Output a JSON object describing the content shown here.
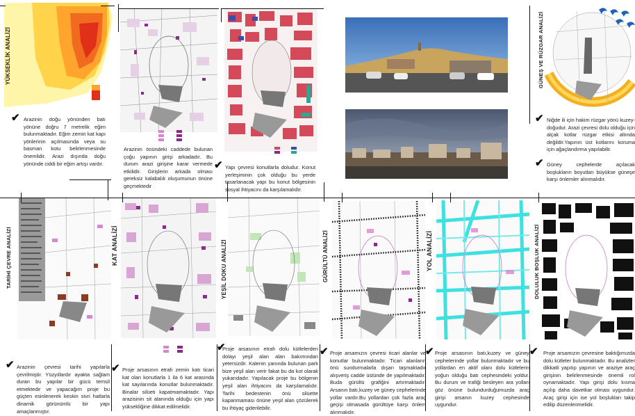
{
  "sections": {
    "yukseklik": {
      "title": "YÜKSEKLİK ANALİZİ",
      "text": "Arazinin doğu yönünden batı yönüne doğru 7 metrelik eğim bulunmaktadır. Eğim zemin kat kapı yönlerinin açılmasında veya su basman kotu belirlenmesinde önemlidir. Arazi dışında doğu yönünde ciddi bir eğim artışı vardır."
    },
    "map2": {
      "text": "Arazinin önündeki caddede bulunan çoğu yapının girişi arkadadır. Bu durum arazi girişine karar vermede etkilidir. Girişlerin arkada olması gereksiz kalabalık oluşumunun önüne geçmektedir"
    },
    "map3": {
      "text": "Yapı çevresi konutlarla doludur. Konut yerleşiminin çok olduğu bu yerde tasarlanacak yapı bu konut bölgesinin sosyal ihtiyacını da karşılamalıdır."
    },
    "gunes": {
      "title": "GÜNEŞ VE RÜZGAR ANALİZİ",
      "text1": "Niğde ili için hakim rüzgar yönü kuzey-doğudur. Arazi çevresi dolu olduğu için alçak kotlar rüzgar etkisi altında değildir.Yapının üst kotlarını koruma için ağaçlandırma yapılabilir.",
      "text2": "Güney cephelerde açılacak boşlukların boyutları büyükse güneşe karşı önlemler alınmalıdır."
    },
    "tarihi": {
      "title": "TARİHİ ÇEVRE ANALİZİ",
      "text": "Arazinin çevresi tarihi yapılarla çevrilmiştir. Yüzyıllardır ayakta sağlam duran bu yapılar bir gücü temsil etmektedir ve yapacağım proje bu güçten esinlenerek keskin sivri hatlarla dinamik görünümlü bir yapı amaçlanmıştır."
    },
    "kat": {
      "title": "KAT ANALİZİ",
      "text": "Proje arsasının etrafı zemin katı ticari kat olan konutlarla 1 ila 6 kat arasında kat sayılarında konutlar bulunmaktadır. Binalar silüeti kapatmamaktadır. Yapı arazisinin sit alanında olduğu için yapı yüksekliğine dikkat edilmelidir."
    },
    "yesil": {
      "title": "YEŞİL DOKU ANALİZİ",
      "text": "Proje arsasının etrafı dolu kütlelerden dolayı yeşil alan alan bakımından yetersizdir. Kalenin yanında bulunan park bize yeşil alan verir fakat bu da kot olarak yukarıdadır. Yapılacak proje bu bölgenin yeşil alan ihtiyacını da karşılamalıdır. Tarihi bedestenin önü silüette kapanmaması önüne yeşil alan çözülerek bu ihtiyaç giderilebilir."
    },
    "gurultu": {
      "title": "GÜRÜLTÜ ANALİZİ",
      "text": "Proje arsamızın çevresi ticari alanlar ve konutlar bulunmaktadır. Ticari alanların önü sundurmalarla dışarı taşmaktadır alışveriş cadde üstünde de yapılmaktadır. Buda gürültü grafiğini artırmaktadır. Arsanın batı,kuzey ve güney cephelerinde yollar vardır.Bu yollardan çok fazla araç geçişi olmasada gürültüye karşı önlem alınmalıdır."
    },
    "yol": {
      "title": "YOL ANALİZİ",
      "text": "Proje arsasının batı,kuzey ve güney cephelerinde yollar bulunmaktadır ve bu yollardan en aktif olanı dolu kütlelerin yoğun olduğu batı cephesindeki yoldur. Bu durum ve trafiği besleyen ara yolları göz önüne bulundurduğumuzda araç girişi arsanın kuzey cephesinde uygundur."
    },
    "doluluk": {
      "title": "DOLULUK BOŞLUK ANALİZİ",
      "text": "Proje arsamızın çevresine baktığımızda dolu kütleler bulunmaktadır. Bu analizler dikkatli yapılıp yapının ve araziye araç girişinin belirlenmesinde önemli rol oynamaktadır. Yapı girişi dolu kısma açılıp daha davetkar olması uygundur. Araç girişi için ise yol boşlukları takip edilip düzenlenmelidir."
    }
  },
  "colors": {
    "accent": "#8b2a8b",
    "pink": "#d986d0",
    "road": "#3fe0e0",
    "sun": "#f2b020",
    "heat_hi": "#e8301a",
    "heat_lo": "#ffe070"
  }
}
